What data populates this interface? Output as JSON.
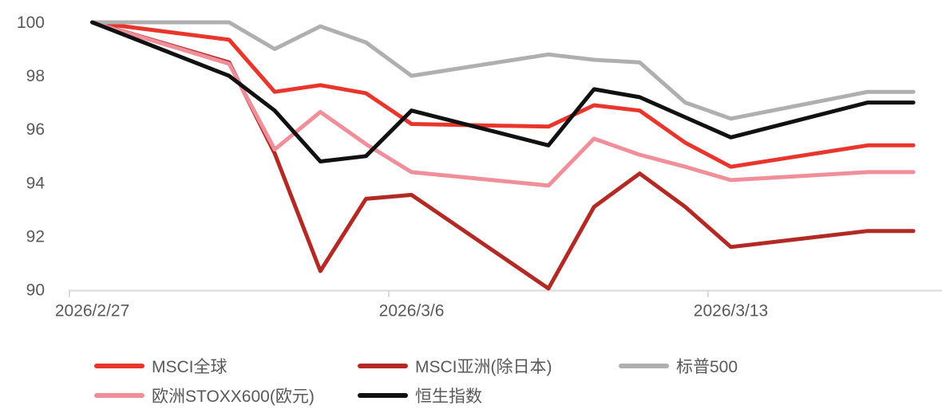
{
  "chart_data": {
    "type": "line",
    "title": "",
    "xlabel": "",
    "ylabel": "",
    "x": [
      "2026/2/27",
      "2026/2/28",
      "2026/3/1",
      "2026/3/2",
      "2026/3/3",
      "2026/3/4",
      "2026/3/5",
      "2026/3/6",
      "2026/3/7",
      "2026/3/8",
      "2026/3/9",
      "2026/3/10",
      "2026/3/11",
      "2026/3/12",
      "2026/3/13",
      "2026/3/14",
      "2026/3/15",
      "2026/3/16",
      "2026/3/17"
    ],
    "x_note": "weekend dates have null values; lines connect straight across gaps",
    "series": [
      {
        "id": "msci-world",
        "name": "MSCI全球",
        "color": "#E8362D",
        "values": [
          100,
          null,
          null,
          99.35,
          97.4,
          97.65,
          97.35,
          96.2,
          null,
          null,
          96.1,
          96.9,
          96.7,
          95.5,
          94.6,
          null,
          null,
          95.4,
          95.4
        ]
      },
      {
        "id": "msci-asia-ex-japan",
        "name": "MSCI亚洲(除日本)",
        "color": "#B22A23",
        "values": [
          100,
          null,
          null,
          98.5,
          95.1,
          90.7,
          93.4,
          93.55,
          null,
          null,
          90.05,
          93.1,
          94.35,
          93.1,
          91.6,
          null,
          null,
          92.2,
          92.2
        ]
      },
      {
        "id": "sp500",
        "name": "标普500",
        "color": "#AFAFAF",
        "values": [
          100,
          null,
          null,
          100,
          99.0,
          99.85,
          99.25,
          98.0,
          null,
          null,
          98.8,
          98.6,
          98.5,
          97.0,
          96.4,
          null,
          null,
          97.4,
          97.4
        ]
      },
      {
        "id": "stoxx600-eur",
        "name": "欧洲STOXX600(欧元)",
        "color": "#F08E9A",
        "values": [
          100,
          null,
          null,
          98.45,
          95.25,
          96.65,
          95.45,
          94.4,
          null,
          null,
          93.9,
          95.65,
          95.05,
          94.6,
          94.1,
          null,
          null,
          94.4,
          94.4
        ]
      },
      {
        "id": "hang-seng",
        "name": "恒生指数",
        "color": "#111111",
        "values": [
          100,
          null,
          null,
          98.0,
          96.7,
          94.8,
          95.0,
          96.7,
          null,
          null,
          95.4,
          97.5,
          97.2,
          96.45,
          95.7,
          null,
          null,
          97.0,
          97.0
        ]
      }
    ],
    "y_ticks": [
      100,
      98,
      96,
      94,
      92,
      90
    ],
    "ylim": [
      90,
      100
    ],
    "x_tick_labels": [
      {
        "text": "2026/2/27",
        "category_index": 0
      },
      {
        "text": "2026/3/6",
        "category_index": 7
      },
      {
        "text": "2026/3/13",
        "category_index": 14
      }
    ],
    "grid": false,
    "legend_position": "bottom",
    "axis_color": "#D9D9D9",
    "tick_text_color": "#595959"
  }
}
